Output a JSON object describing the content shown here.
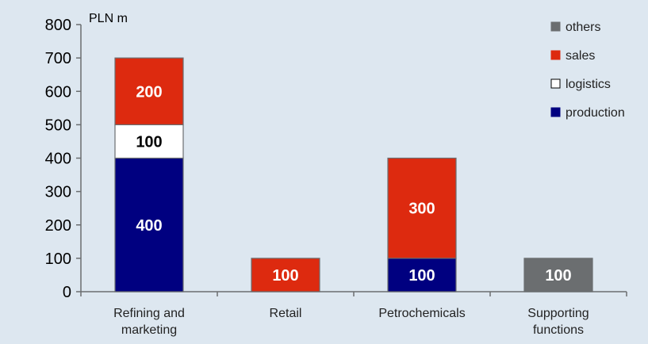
{
  "chart_data": {
    "type": "bar",
    "stacked": true,
    "unit_label": "PLN m",
    "categories": [
      [
        "Refining and",
        "marketing"
      ],
      [
        "Retail"
      ],
      [
        "Petrochemicals"
      ],
      [
        "Supporting",
        "functions"
      ]
    ],
    "series": [
      {
        "name": "production",
        "color": "#000080",
        "label_color": "#ffffff",
        "values": [
          400,
          0,
          100,
          0
        ]
      },
      {
        "name": "logistics",
        "color": "#ffffff",
        "label_color": "#000000",
        "values": [
          100,
          0,
          0,
          0
        ]
      },
      {
        "name": "sales",
        "color": "#dd2a0f",
        "label_color": "#ffffff",
        "values": [
          200,
          100,
          300,
          0
        ]
      },
      {
        "name": "others",
        "color": "#6b6e70",
        "label_color": "#ffffff",
        "values": [
          0,
          0,
          0,
          100
        ]
      }
    ],
    "legend_order": [
      "others",
      "sales",
      "logistics",
      "production"
    ],
    "ylim": [
      0,
      800
    ],
    "yticks": [
      0,
      100,
      200,
      300,
      400,
      500,
      600,
      700,
      800
    ],
    "legend_position": "top-right",
    "grid": false
  }
}
